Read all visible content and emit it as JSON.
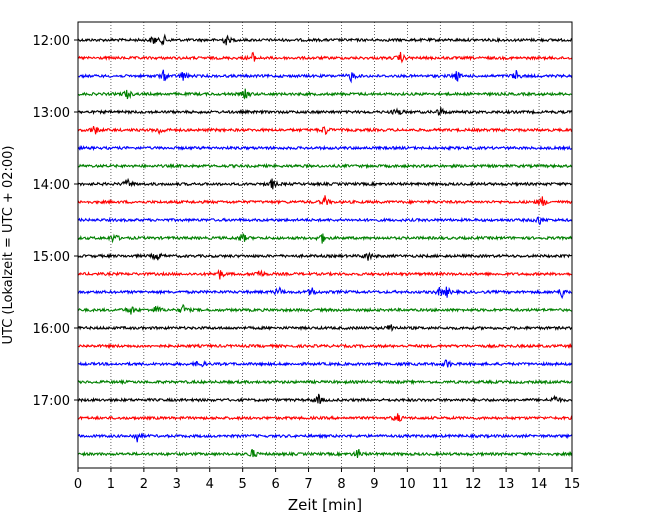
{
  "chart_data": {
    "type": "line",
    "title": "",
    "xlabel": "Zeit  [min]",
    "ylabel": "UTC (Lokalzeit = UTC + 02:00)",
    "xlim": [
      0,
      15
    ],
    "x_ticks": [
      "0",
      "1",
      "2",
      "3",
      "4",
      "5",
      "6",
      "7",
      "8",
      "9",
      "10",
      "11",
      "12",
      "13",
      "14",
      "15"
    ],
    "y_ticks": [
      "12:00",
      "13:00",
      "14:00",
      "15:00",
      "16:00",
      "17:00"
    ],
    "x_grid": true,
    "y_grid": false,
    "trace_interval_min": 15,
    "start_time": "12:00",
    "trace_colors": [
      "#000000",
      "#ff0000",
      "#0000ff",
      "#008000"
    ],
    "series": [
      {
        "start": "12:00",
        "color": "#000000",
        "events": [
          2.3,
          2.6,
          4.5
        ]
      },
      {
        "start": "12:15",
        "color": "#ff0000",
        "events": [
          5.3,
          9.8
        ]
      },
      {
        "start": "12:30",
        "color": "#0000ff",
        "events": [
          2.6,
          3.2,
          8.3,
          11.5,
          13.3
        ]
      },
      {
        "start": "12:45",
        "color": "#008000",
        "events": [
          1.5,
          5.1
        ]
      },
      {
        "start": "13:00",
        "color": "#000000",
        "events": [
          9.7,
          11.0
        ]
      },
      {
        "start": "13:15",
        "color": "#ff0000",
        "events": [
          0.5,
          2.5,
          7.5
        ]
      },
      {
        "start": "13:30",
        "color": "#0000ff",
        "events": []
      },
      {
        "start": "13:45",
        "color": "#008000",
        "events": []
      },
      {
        "start": "14:00",
        "color": "#000000",
        "events": [
          1.5,
          5.9
        ]
      },
      {
        "start": "14:15",
        "color": "#ff0000",
        "events": [
          7.5,
          14.1
        ]
      },
      {
        "start": "14:30",
        "color": "#0000ff",
        "events": [
          14.0
        ]
      },
      {
        "start": "14:45",
        "color": "#008000",
        "events": [
          1.1,
          5.0,
          7.4
        ]
      },
      {
        "start": "15:00",
        "color": "#000000",
        "events": [
          2.4,
          8.8
        ]
      },
      {
        "start": "15:15",
        "color": "#ff0000",
        "events": [
          4.3,
          5.5
        ]
      },
      {
        "start": "15:30",
        "color": "#0000ff",
        "events": [
          6.1,
          7.1,
          11.0,
          11.2,
          14.7
        ]
      },
      {
        "start": "15:45",
        "color": "#008000",
        "events": [
          1.6,
          2.4,
          3.2
        ]
      },
      {
        "start": "16:00",
        "color": "#000000",
        "events": [
          9.5
        ]
      },
      {
        "start": "16:15",
        "color": "#ff0000",
        "events": []
      },
      {
        "start": "16:30",
        "color": "#0000ff",
        "events": [
          3.7,
          11.2
        ]
      },
      {
        "start": "16:45",
        "color": "#008000",
        "events": []
      },
      {
        "start": "17:00",
        "color": "#000000",
        "events": [
          7.3,
          14.5
        ]
      },
      {
        "start": "17:15",
        "color": "#ff0000",
        "events": [
          9.7
        ]
      },
      {
        "start": "17:30",
        "color": "#0000ff",
        "events": [
          1.8
        ]
      },
      {
        "start": "17:45",
        "color": "#008000",
        "events": [
          5.3,
          8.5
        ]
      }
    ]
  }
}
